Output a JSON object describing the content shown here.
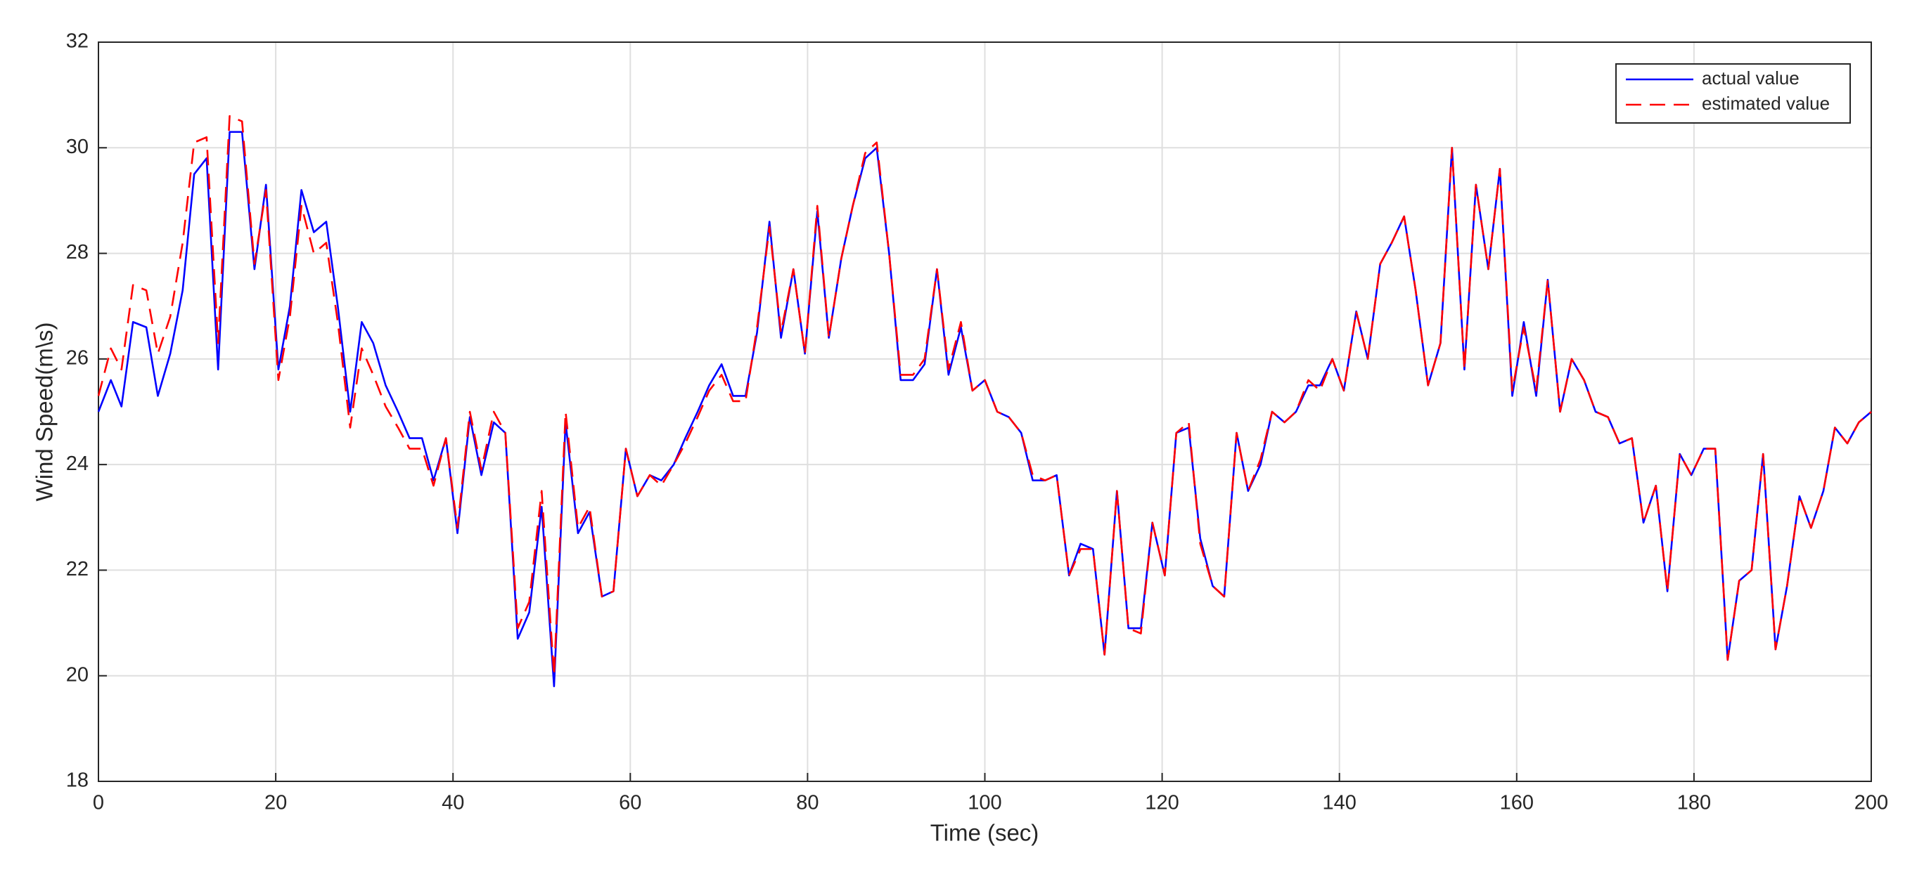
{
  "chart_data": {
    "type": "line",
    "xlabel": "Time (sec)",
    "ylabel": "Wind Speed(m\\s)",
    "xlim": [
      0,
      200
    ],
    "xticks": [
      0,
      20,
      40,
      60,
      80,
      100,
      120,
      140,
      160,
      180,
      200
    ],
    "ylim": [
      18,
      32
    ],
    "yticks": [
      18,
      20,
      22,
      24,
      26,
      28,
      30,
      32
    ],
    "grid": true,
    "legend": "upper-right",
    "x": [
      0,
      1.4,
      2.6,
      3.9,
      5.4,
      6.7,
      8.1,
      9.5,
      10.8,
      12.2,
      13.5,
      14.8,
      16.2,
      17.6,
      18.9,
      20.3,
      21.6,
      22.9,
      24.3,
      25.7,
      27.0,
      28.4,
      29.7,
      31.0,
      32.4,
      33.8,
      35.1,
      36.5,
      37.8,
      39.2,
      40.5,
      41.9,
      43.2,
      44.6,
      45.9,
      47.3,
      48.6,
      50.0,
      51.4,
      52.7,
      54.1,
      55.4,
      56.8,
      58.1,
      59.5,
      60.8,
      62.2,
      63.5,
      64.9,
      66.2,
      67.6,
      68.9,
      70.3,
      71.6,
      73.0,
      74.3,
      75.7,
      77.0,
      78.4,
      79.7,
      81.1,
      82.4,
      83.8,
      85.1,
      86.5,
      87.8,
      89.2,
      90.5,
      91.9,
      93.2,
      94.6,
      95.9,
      97.3,
      98.6,
      100.0,
      101.4,
      102.7,
      104.1,
      105.4,
      106.8,
      108.1,
      109.5,
      110.8,
      112.2,
      113.5,
      114.9,
      116.2,
      117.6,
      118.9,
      120.3,
      121.6,
      123.0,
      124.3,
      125.7,
      127.0,
      128.4,
      129.7,
      131.1,
      132.4,
      133.8,
      135.1,
      136.5,
      137.8,
      139.2,
      140.5,
      141.9,
      143.2,
      144.6,
      145.9,
      147.3,
      148.6,
      150.0,
      151.4,
      152.7,
      154.1,
      155.4,
      156.8,
      158.1,
      159.5,
      160.8,
      162.2,
      163.5,
      164.9,
      166.2,
      167.6,
      168.9,
      170.3,
      171.6,
      173.0,
      174.3,
      175.7,
      177.0,
      178.4,
      179.7,
      181.1,
      182.4,
      183.8,
      185.1,
      186.5,
      187.8,
      189.2,
      190.5,
      191.9,
      193.2,
      194.6,
      195.9,
      197.3,
      198.6,
      200
    ],
    "series": [
      {
        "name": "actual value",
        "color": "#0000ff",
        "line_style": "solid",
        "values": [
          25.0,
          25.6,
          25.1,
          26.7,
          26.6,
          25.3,
          26.1,
          27.3,
          29.5,
          29.8,
          25.8,
          30.3,
          30.3,
          27.7,
          29.3,
          25.8,
          27.0,
          29.2,
          28.4,
          28.6,
          27.0,
          25.0,
          26.7,
          26.3,
          25.5,
          25.0,
          24.5,
          24.5,
          23.7,
          24.5,
          22.7,
          24.9,
          23.8,
          24.8,
          24.6,
          20.7,
          21.2,
          23.2,
          19.8,
          24.8,
          22.7,
          23.1,
          21.5,
          21.6,
          24.3,
          23.4,
          23.8,
          23.7,
          24.0,
          24.5,
          25.0,
          25.5,
          25.9,
          25.3,
          25.3,
          26.5,
          28.6,
          26.4,
          27.7,
          26.1,
          28.8,
          26.4,
          27.9,
          28.9,
          29.8,
          30.0,
          28.0,
          25.6,
          25.6,
          25.9,
          27.7,
          25.7,
          26.6,
          25.4,
          25.6,
          25.0,
          24.9,
          24.6,
          23.7,
          23.7,
          23.8,
          21.9,
          22.5,
          22.4,
          20.4,
          23.5,
          20.9,
          20.9,
          22.9,
          21.9,
          24.6,
          24.7,
          22.6,
          21.7,
          21.5,
          24.6,
          23.5,
          24.0,
          25.0,
          24.8,
          25.0,
          25.5,
          25.5,
          26.0,
          25.4,
          26.9,
          26.0,
          27.8,
          28.2,
          28.7,
          27.3,
          25.5,
          26.3,
          30.0,
          25.8,
          29.3,
          27.7,
          29.6,
          25.3,
          26.7,
          25.3,
          27.5,
          25.0,
          26.0,
          25.6,
          25.0,
          24.9,
          24.4,
          24.5,
          22.9,
          23.6,
          21.6,
          24.2,
          23.8,
          24.3,
          24.3,
          20.3,
          21.8,
          22.0,
          24.2,
          20.5,
          21.7,
          23.4,
          22.8,
          23.5,
          24.7,
          24.4,
          24.8,
          25.0
        ]
      },
      {
        "name": "estimated value",
        "color": "#ff0000",
        "line_style": "dashed",
        "values": [
          25.3,
          26.2,
          25.8,
          27.4,
          27.3,
          26.1,
          26.8,
          28.2,
          30.1,
          30.2,
          26.3,
          30.6,
          30.5,
          27.8,
          29.2,
          25.6,
          26.8,
          28.9,
          28.0,
          28.2,
          26.7,
          24.7,
          26.2,
          25.7,
          25.1,
          24.7,
          24.3,
          24.3,
          23.6,
          24.5,
          22.8,
          25.0,
          23.9,
          25.0,
          24.6,
          20.9,
          21.4,
          23.5,
          20.0,
          25.0,
          22.8,
          23.2,
          21.5,
          21.6,
          24.3,
          23.4,
          23.8,
          23.6,
          24.0,
          24.4,
          24.9,
          25.4,
          25.7,
          25.2,
          25.2,
          26.6,
          28.5,
          26.5,
          27.7,
          26.1,
          28.9,
          26.4,
          27.9,
          28.9,
          29.9,
          30.1,
          28.0,
          25.7,
          25.7,
          26.0,
          27.7,
          25.8,
          26.7,
          25.4,
          25.6,
          25.0,
          24.9,
          24.6,
          23.8,
          23.7,
          23.8,
          21.9,
          22.4,
          22.4,
          20.4,
          23.5,
          20.9,
          20.8,
          22.9,
          21.9,
          24.6,
          24.8,
          22.5,
          21.7,
          21.5,
          24.6,
          23.5,
          24.1,
          25.0,
          24.8,
          25.0,
          25.6,
          25.4,
          26.0,
          25.4,
          26.9,
          26.0,
          27.8,
          28.2,
          28.7,
          27.3,
          25.5,
          26.3,
          30.0,
          25.8,
          29.3,
          27.7,
          29.6,
          25.4,
          26.6,
          25.4,
          27.5,
          25.0,
          26.0,
          25.6,
          25.0,
          24.9,
          24.4,
          24.5,
          22.9,
          23.6,
          21.6,
          24.2,
          23.8,
          24.3,
          24.3,
          20.3,
          21.8,
          22.0,
          24.2,
          20.5,
          21.7,
          23.4,
          22.8,
          23.5,
          24.7,
          24.4,
          24.8,
          25.0
        ]
      }
    ]
  }
}
